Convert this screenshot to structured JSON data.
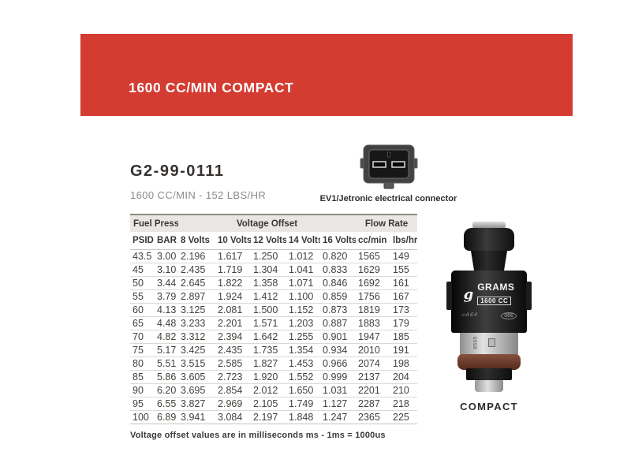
{
  "banner": {
    "title": "1600 CC/MIN COMPACT",
    "accent_color": "#d43b31"
  },
  "product": {
    "part_number": "G2-99-0111",
    "subtitle": "1600 CC/MIN - 152 LBS/HR",
    "connector_label": "EV1/Jetronic electrical connector",
    "connector_icon": "ev1-two-pin-connector-icon"
  },
  "table": {
    "group_headers": [
      {
        "label": "Fuel Pressure",
        "span": 2
      },
      {
        "label": "Voltage Offset",
        "span": 5
      },
      {
        "label": "Flow Rate",
        "span": 2
      }
    ],
    "columns": [
      "PSID",
      "BAR",
      "8 Volts",
      "10 Volts",
      "12 Volts",
      "14 Volts",
      "16 Volts",
      "cc/min",
      "lbs/hr"
    ],
    "rows": [
      [
        "43.5",
        "3.00",
        "2.196",
        "1.617",
        "1.250",
        "1.012",
        "0.820",
        "1565",
        "149"
      ],
      [
        "45",
        "3.10",
        "2.435",
        "1.719",
        "1.304",
        "1.041",
        "0.833",
        "1629",
        "155"
      ],
      [
        "50",
        "3.44",
        "2.645",
        "1.822",
        "1.358",
        "1.071",
        "0.846",
        "1692",
        "161"
      ],
      [
        "55",
        "3.79",
        "2.897",
        "1.924",
        "1.412",
        "1.100",
        "0.859",
        "1756",
        "167"
      ],
      [
        "60",
        "4.13",
        "3.125",
        "2.081",
        "1.500",
        "1.152",
        "0.873",
        "1819",
        "173"
      ],
      [
        "65",
        "4.48",
        "3.233",
        "2.201",
        "1.571",
        "1.203",
        "0.887",
        "1883",
        "179"
      ],
      [
        "70",
        "4.82",
        "3.312",
        "2.394",
        "1.642",
        "1.255",
        "0.901",
        "1947",
        "185"
      ],
      [
        "75",
        "5.17",
        "3.425",
        "2.435",
        "1.735",
        "1.354",
        "0.934",
        "2010",
        "191"
      ],
      [
        "80",
        "5.51",
        "3.515",
        "2.585",
        "1.827",
        "1.453",
        "0.966",
        "2074",
        "198"
      ],
      [
        "85",
        "5.86",
        "3.605",
        "2.723",
        "1.920",
        "1.552",
        "0.999",
        "2137",
        "204"
      ],
      [
        "90",
        "6.20",
        "3.695",
        "2.854",
        "2.012",
        "1.650",
        "1.031",
        "2201",
        "210"
      ],
      [
        "95",
        "6.55",
        "3.827",
        "2.969",
        "2.105",
        "1.749",
        "1.127",
        "2287",
        "218"
      ],
      [
        "100",
        "6.89",
        "3.941",
        "3.084",
        "2.197",
        "1.848",
        "1.247",
        "2365",
        "225"
      ]
    ]
  },
  "footnote": "Voltage offset values are in milliseconds ms - 1ms = 1000us",
  "injector": {
    "logo_glyph": "g",
    "brand": "GRAMS",
    "model": "1600 CC",
    "marking_left": "»A64",
    "marking_stamp": "066",
    "band_code": "8565",
    "caption": "COMPACT"
  }
}
